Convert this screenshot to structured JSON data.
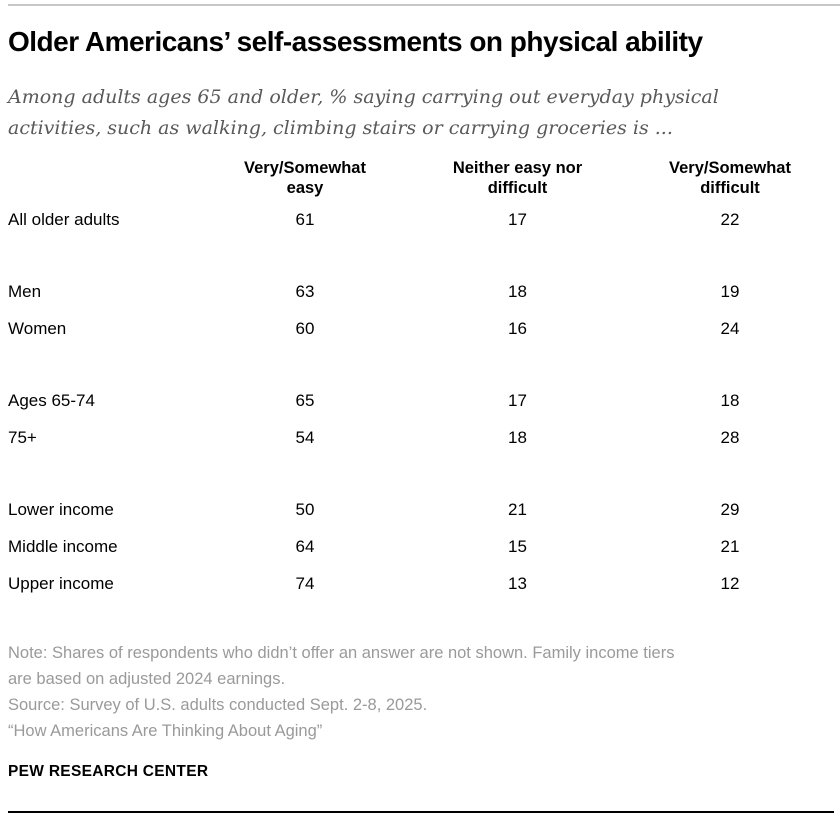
{
  "header": {
    "title": "Older Americans’ self-assessments on physical ability",
    "subtitle": "Among adults ages 65 and older, % saying carrying out everyday physical\nactivities, such as walking, climbing stairs or carrying groceries is ..."
  },
  "table": {
    "columns": [
      "Very/Somewhat\neasy",
      "Neither easy nor\ndifficult",
      "Very/Somewhat\ndifficult"
    ],
    "groups": [
      {
        "rows": [
          {
            "label": "All older adults",
            "values": [
              61,
              17,
              22
            ]
          }
        ]
      },
      {
        "rows": [
          {
            "label": "Men",
            "values": [
              63,
              18,
              19
            ]
          },
          {
            "label": "Women",
            "values": [
              60,
              16,
              24
            ]
          }
        ]
      },
      {
        "rows": [
          {
            "label": "Ages 65-74",
            "values": [
              65,
              17,
              18
            ]
          },
          {
            "label": "75+",
            "values": [
              54,
              18,
              28
            ]
          }
        ]
      },
      {
        "rows": [
          {
            "label": "Lower income",
            "values": [
              50,
              21,
              29
            ]
          },
          {
            "label": "Middle income",
            "values": [
              64,
              15,
              21
            ]
          },
          {
            "label": "Upper income",
            "values": [
              74,
              13,
              12
            ]
          }
        ]
      }
    ]
  },
  "footer": {
    "note": "Note: Shares of respondents who didn’t offer an answer are not shown. Family income tiers\nare based on adjusted 2024 earnings.",
    "source": "Source: Survey of U.S. adults conducted Sept. 2-8, 2025.",
    "report": "“How Americans Are Thinking About Aging”",
    "brand": "PEW RESEARCH CENTER"
  },
  "colors": {
    "subtitle_gray": "#58595b",
    "note_gray": "#9a9a9a",
    "top_rule": "#c7c7c7",
    "bottom_rule": "#000000"
  },
  "chart_data": {
    "type": "table",
    "title": "Older Americans’ self-assessments on physical ability",
    "subtitle": "Among adults ages 65 and older, % saying carrying out everyday physical activities, such as walking, climbing stairs or carrying groceries is ...",
    "columns": [
      "Very/Somewhat easy",
      "Neither easy nor difficult",
      "Very/Somewhat difficult"
    ],
    "rows": [
      {
        "label": "All older adults",
        "values": [
          61,
          17,
          22
        ]
      },
      {
        "label": "Men",
        "values": [
          63,
          18,
          19
        ]
      },
      {
        "label": "Women",
        "values": [
          60,
          16,
          24
        ]
      },
      {
        "label": "Ages 65-74",
        "values": [
          65,
          17,
          18
        ]
      },
      {
        "label": "75+",
        "values": [
          54,
          18,
          28
        ]
      },
      {
        "label": "Lower income",
        "values": [
          50,
          21,
          29
        ]
      },
      {
        "label": "Middle income",
        "values": [
          64,
          15,
          21
        ]
      },
      {
        "label": "Upper income",
        "values": [
          74,
          13,
          12
        ]
      }
    ],
    "units": "percent",
    "note": "Shares of respondents who didn’t offer an answer are not shown. Family income tiers are based on adjusted 2024 earnings.",
    "source": "Survey of U.S. adults conducted Sept. 2-8, 2025."
  }
}
